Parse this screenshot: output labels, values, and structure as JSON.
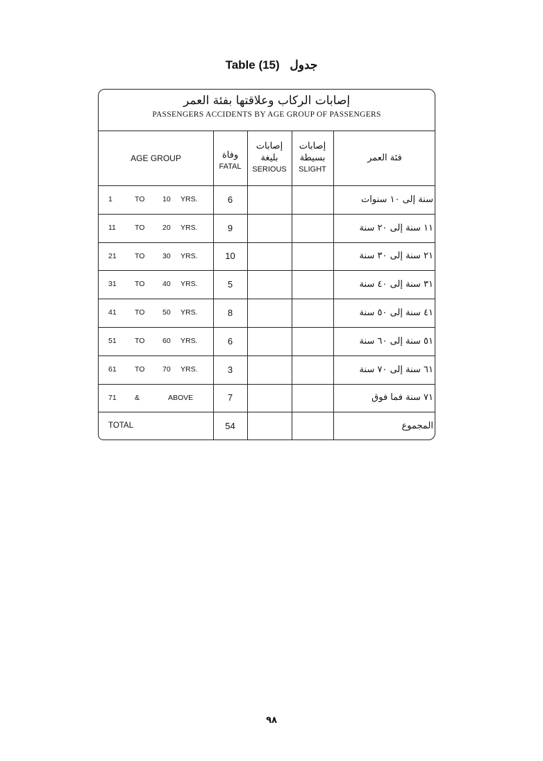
{
  "title": {
    "en": "Table (15)",
    "ar": "جدول"
  },
  "table": {
    "title_ar": "إصابات الركاب وعلاقتها بفئة العمر",
    "title_en": "PASSENGERS ACCIDENTS BY AGE GROUP OF PASSENGERS",
    "headers": {
      "age_group": "AGE GROUP",
      "fatal_ar": "وفاة",
      "fatal_en": "FATAL",
      "serious_ar1": "إصابات",
      "serious_ar2": "بليغة",
      "serious_en": "SERIOUS",
      "slight_ar1": "إصابات",
      "slight_ar2": "بسيطة",
      "slight_en": "SLIGHT",
      "age_group_ar": "فئة العمر"
    },
    "rows": [
      {
        "from": "1",
        "sep": "TO",
        "to": "10",
        "unit": "YRS.",
        "fatal": "6",
        "serious": "",
        "slight": "",
        "ar": "سنة إلى ١٠ سنوات"
      },
      {
        "from": "11",
        "sep": "TO",
        "to": "20",
        "unit": "YRS.",
        "fatal": "9",
        "serious": "",
        "slight": "",
        "ar": "١١ سنة إلى ٢٠ سنة"
      },
      {
        "from": "21",
        "sep": "TO",
        "to": "30",
        "unit": "YRS.",
        "fatal": "10",
        "serious": "",
        "slight": "",
        "ar": "٢١ سنة إلى ٣٠ سنة"
      },
      {
        "from": "31",
        "sep": "TO",
        "to": "40",
        "unit": "YRS.",
        "fatal": "5",
        "serious": "",
        "slight": "",
        "ar": "٣١ سنة إلى ٤٠ سنة"
      },
      {
        "from": "41",
        "sep": "TO",
        "to": "50",
        "unit": "YRS.",
        "fatal": "8",
        "serious": "",
        "slight": "",
        "ar": "٤١ سنة إلى ٥٠ سنة"
      },
      {
        "from": "51",
        "sep": "TO",
        "to": "60",
        "unit": "YRS.",
        "fatal": "6",
        "serious": "",
        "slight": "",
        "ar": "٥١ سنة إلى ٦٠ سنة"
      },
      {
        "from": "61",
        "sep": "TO",
        "to": "70",
        "unit": "YRS.",
        "fatal": "3",
        "serious": "",
        "slight": "",
        "ar": "٦١ سنة إلى ٧٠ سنة"
      },
      {
        "from": "71",
        "sep": "&",
        "to": "",
        "unit": "ABOVE",
        "fatal": "7",
        "serious": "",
        "slight": "",
        "ar": "٧١ سنة فما فوق"
      }
    ],
    "total": {
      "label": "TOTAL",
      "fatal": "54",
      "serious": "",
      "slight": "",
      "ar": "المجموع"
    }
  },
  "page_number": "٩٨"
}
